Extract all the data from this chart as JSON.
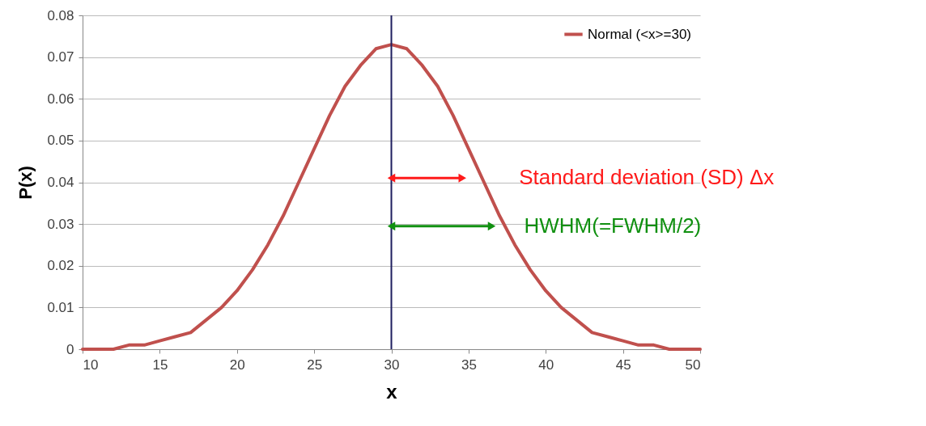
{
  "chart_data": {
    "type": "line",
    "xlabel": "x",
    "ylabel": "P(x)",
    "x": [
      10,
      11,
      12,
      13,
      14,
      15,
      16,
      17,
      18,
      19,
      20,
      21,
      22,
      23,
      24,
      25,
      26,
      27,
      28,
      29,
      30,
      31,
      32,
      33,
      34,
      35,
      36,
      37,
      38,
      39,
      40,
      41,
      42,
      43,
      44,
      45,
      46,
      47,
      48,
      49,
      50
    ],
    "series": [
      {
        "name": "Normal (<x>=30)",
        "color": "#c0504d",
        "values": [
          0.0,
          0.0,
          0.0,
          0.001,
          0.001,
          0.002,
          0.003,
          0.004,
          0.007,
          0.01,
          0.014,
          0.019,
          0.025,
          0.032,
          0.04,
          0.048,
          0.056,
          0.063,
          0.068,
          0.072,
          0.073,
          0.072,
          0.068,
          0.063,
          0.056,
          0.048,
          0.04,
          0.032,
          0.025,
          0.019,
          0.014,
          0.01,
          0.007,
          0.004,
          0.003,
          0.002,
          0.001,
          0.001,
          0.0,
          0.0,
          0.0
        ]
      }
    ],
    "xlim": [
      10,
      50
    ],
    "xticks": [
      10,
      15,
      20,
      25,
      30,
      35,
      40,
      45,
      50
    ],
    "ylim": [
      0,
      0.08
    ],
    "yticks": [
      {
        "value": 0,
        "label": "0"
      },
      0.01,
      0.02,
      0.03,
      0.04,
      0.05,
      0.06,
      0.07,
      0.08
    ],
    "grid": "y",
    "legend": "top right",
    "marker": "none",
    "line_style": "solid",
    "ref_lines": [
      {
        "axis": "x",
        "value": 30,
        "color": "#1f1f5f"
      }
    ],
    "annotations": [
      {
        "text": "Standard deviation (SD) Δx",
        "x": 34.6,
        "y": 0.041
      },
      {
        "text": "HWHM(=FWHM/2)",
        "x": 36.5,
        "y": 0.0295
      }
    ]
  }
}
